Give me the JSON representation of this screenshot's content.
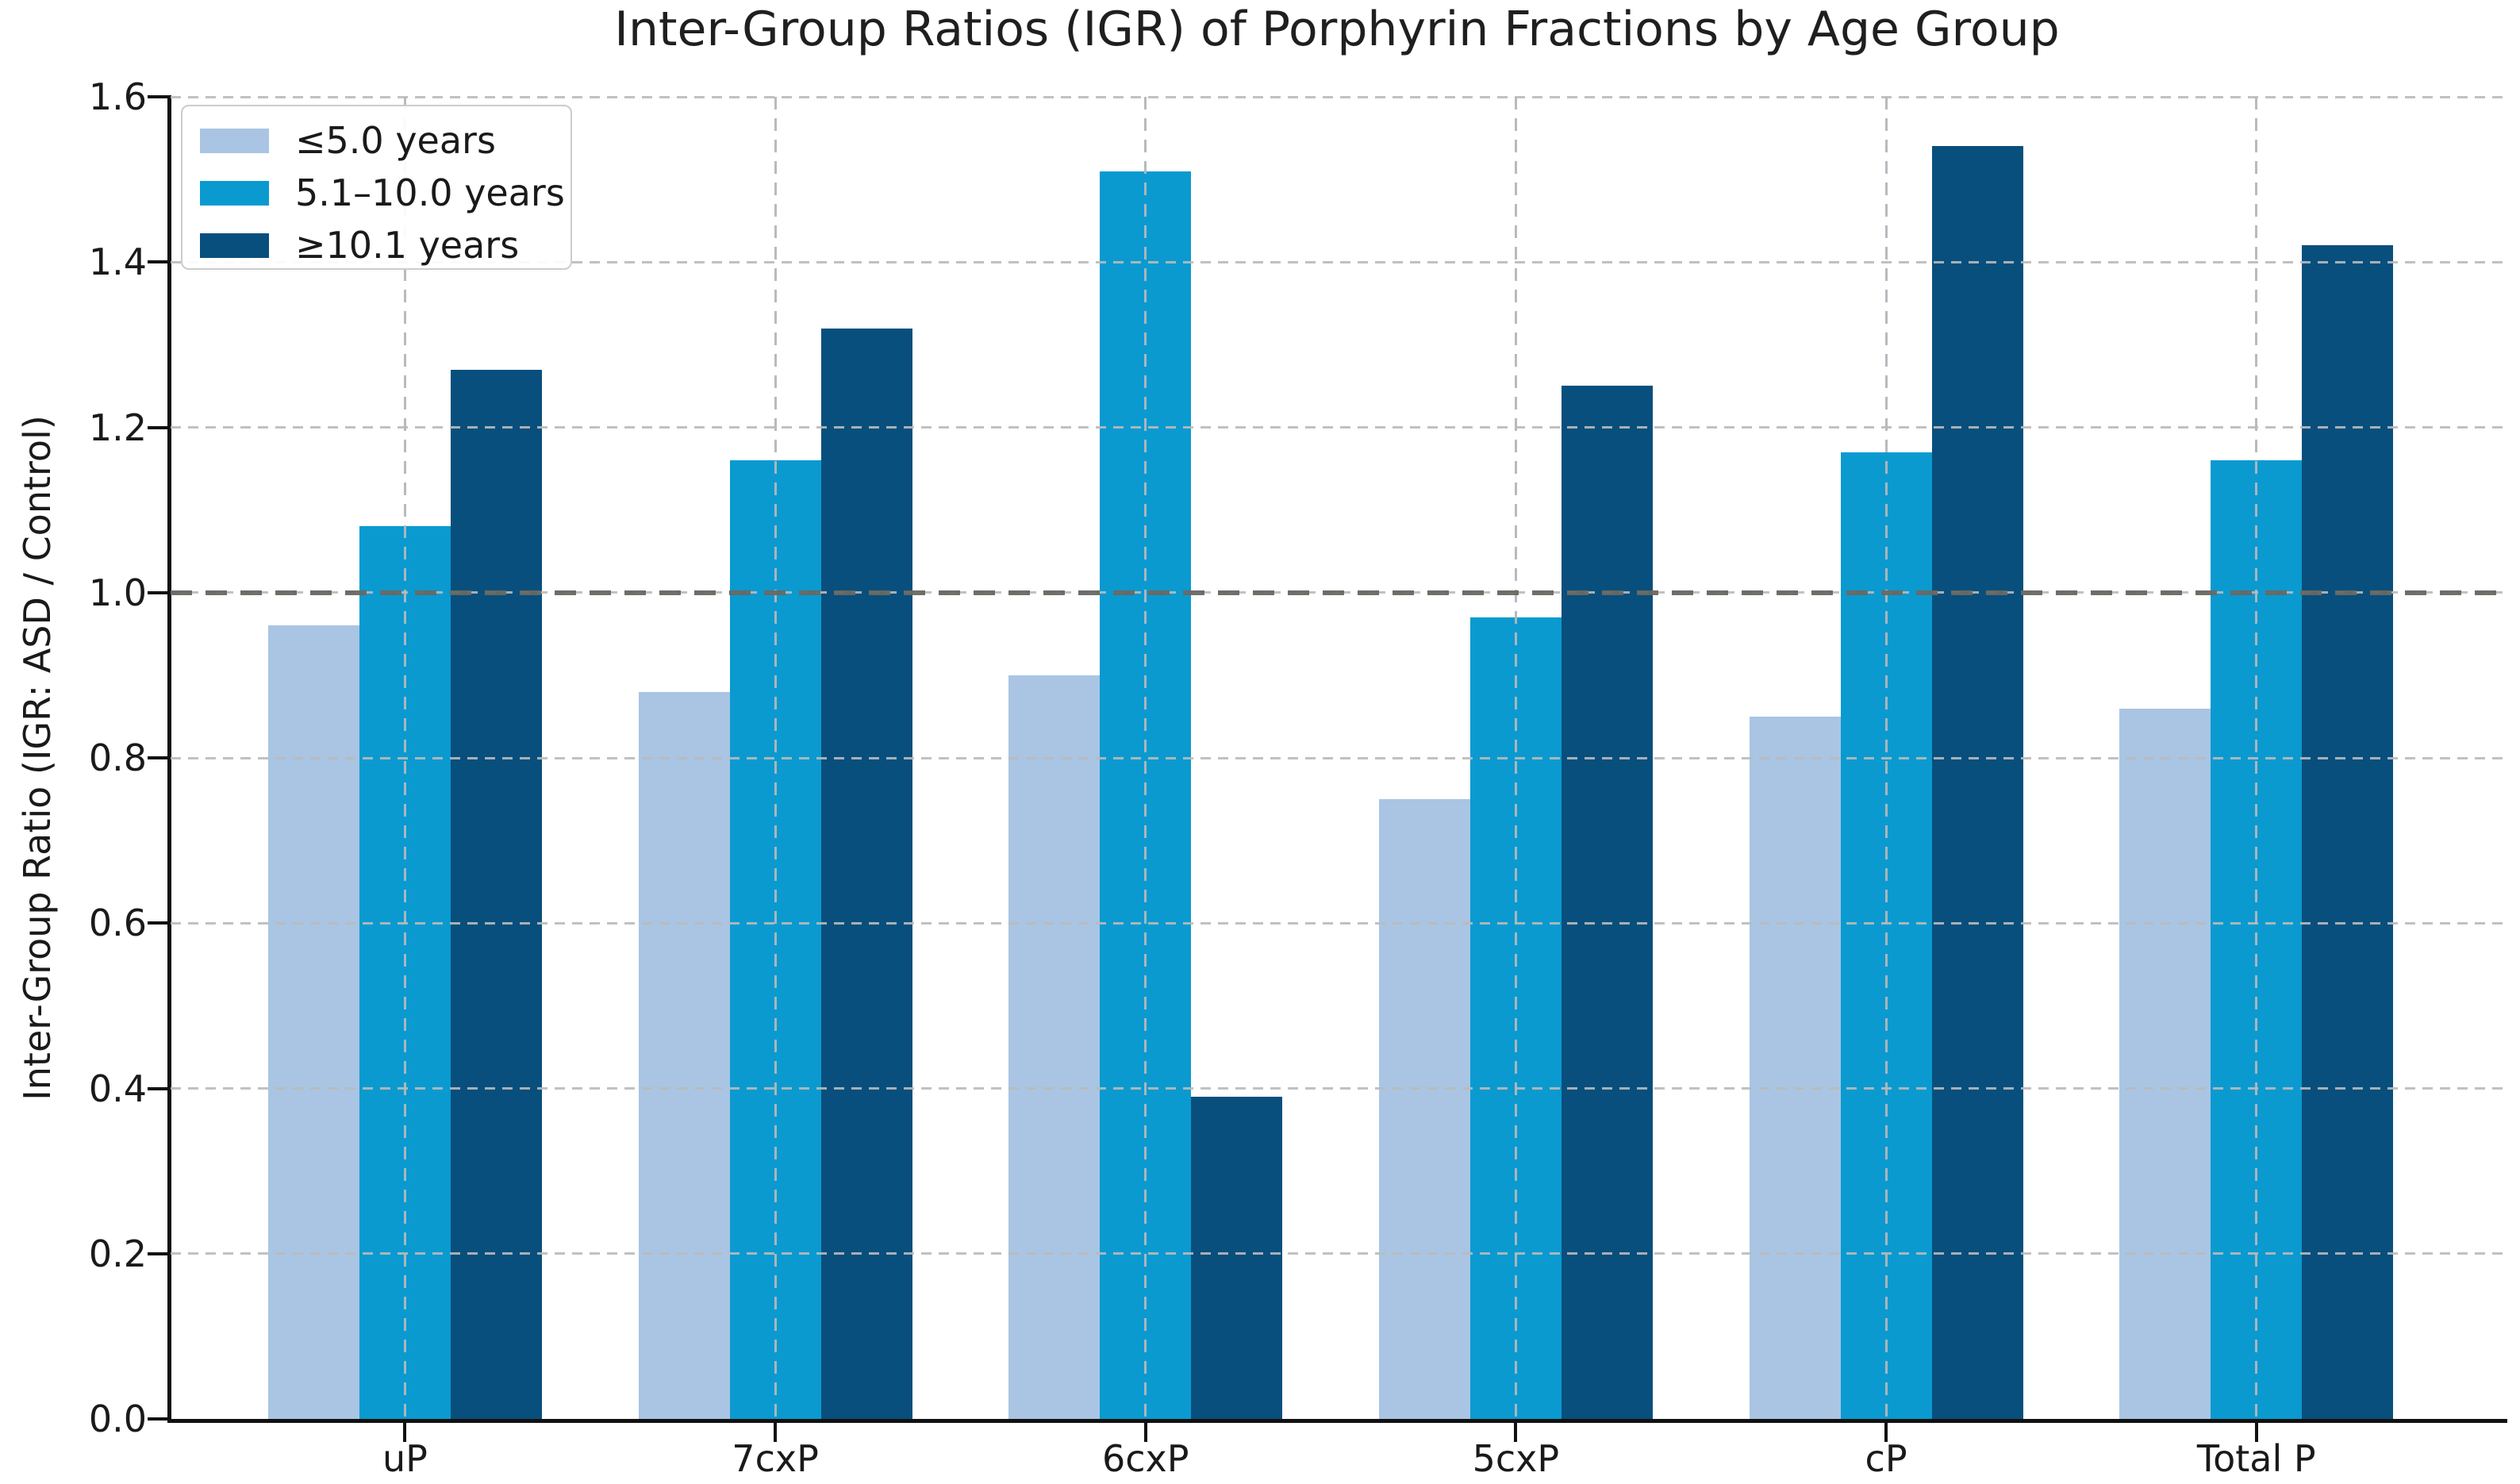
{
  "chart_data": {
    "type": "bar",
    "title": "Inter-Group Ratios (IGR) of Porphyrin Fractions by Age Group",
    "xlabel": "",
    "ylabel": "Inter-Group Ratio (IGR: ASD / Control)",
    "categories": [
      "uP",
      "7cxP",
      "6cxP",
      "5cxP",
      "cP",
      "Total P"
    ],
    "series": [
      {
        "name": "≤5.0 years",
        "color": "#a9c5e3",
        "values": [
          0.96,
          0.88,
          0.9,
          0.75,
          0.85,
          0.86
        ]
      },
      {
        "name": "5.1–10.0 years",
        "color": "#0a9ad0",
        "values": [
          1.08,
          1.16,
          1.51,
          0.97,
          1.17,
          1.16
        ]
      },
      {
        "name": "≥10.1 years",
        "color": "#084f7d",
        "values": [
          1.27,
          1.32,
          0.39,
          1.25,
          1.54,
          1.42
        ]
      }
    ],
    "ylim": [
      0.0,
      1.6
    ],
    "yticks": [
      "0.0",
      "0.2",
      "0.4",
      "0.6",
      "0.8",
      "1.0",
      "1.2",
      "1.4",
      "1.6"
    ],
    "reference_line": 1.0,
    "grid": "dashed horizontal and vertical, drawn above bars",
    "legend_position": "upper-left"
  },
  "style": {
    "background": "#ffffff",
    "spine_color": "#111111",
    "text_color": "#1a1a1a",
    "grid_color": "#bababa",
    "reference_line_color": "#686862",
    "legend_border_color": "#cccccc"
  }
}
